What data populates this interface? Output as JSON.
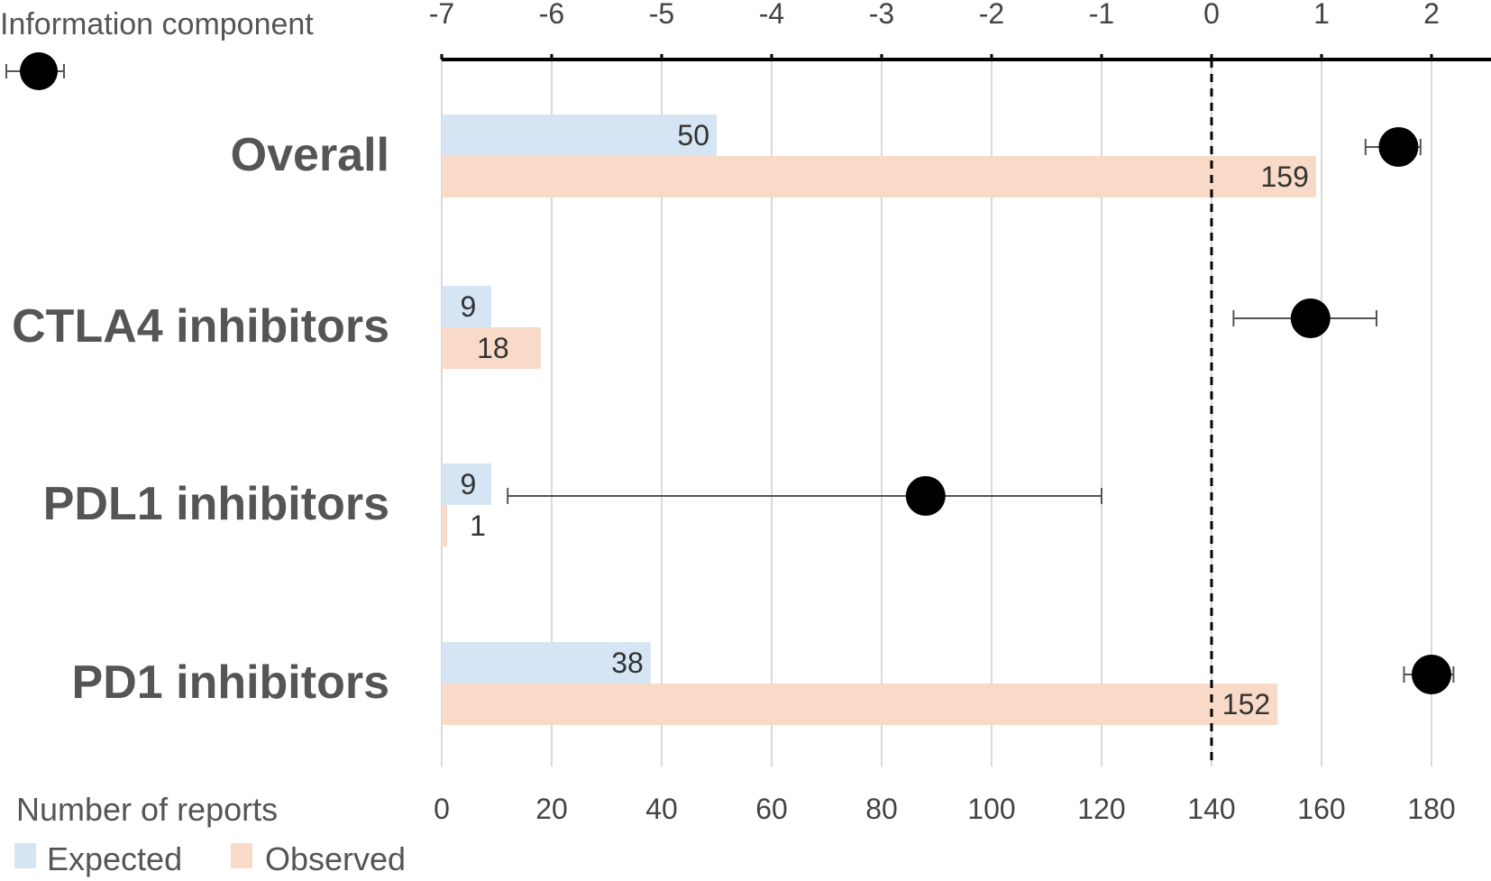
{
  "chart_data": {
    "type": "bar",
    "orientation": "horizontal",
    "categories": [
      "Overall",
      "CTLA4 inhibitors",
      "PDL1 inhibitors",
      "PD1 inhibitors"
    ],
    "bottom_axis": {
      "title": "Number of reports",
      "range": [
        0,
        190
      ],
      "ticks": [
        "0",
        "20",
        "40",
        "60",
        "80",
        "100",
        "120",
        "140",
        "160",
        "180"
      ],
      "tick_values": [
        0,
        20,
        40,
        60,
        80,
        100,
        120,
        140,
        160,
        180
      ]
    },
    "top_axis": {
      "title": "Information component",
      "range": [
        -7,
        2.5
      ],
      "ticks": [
        "-7",
        "-6",
        "-5",
        "-4",
        "-3",
        "-2",
        "-1",
        "0",
        "1",
        "2"
      ],
      "tick_values": [
        -7,
        -6,
        -5,
        -4,
        -3,
        -2,
        -1,
        0,
        1,
        2
      ]
    },
    "series": [
      {
        "name": "Expected",
        "color": "#d6e5f4",
        "values": [
          50,
          9,
          9,
          38
        ],
        "labels": [
          "50",
          "9",
          "9",
          "38"
        ]
      },
      {
        "name": "Observed",
        "color": "#f9d9c7",
        "values": [
          159,
          18,
          1,
          152
        ],
        "labels": [
          "159",
          "18",
          "1",
          "152"
        ]
      }
    ],
    "information_component": {
      "values": [
        1.7,
        0.9,
        -2.6,
        2.0
      ],
      "ci_lower": [
        1.4,
        0.2,
        -6.4,
        1.75
      ],
      "ci_upper": [
        1.9,
        1.5,
        -1.0,
        2.2
      ]
    },
    "reference_line": {
      "axis": "top",
      "value": 0,
      "style": "dashed"
    },
    "ic_legend_marker": "filled-circle-with-error-bar",
    "grid": true,
    "legend_position": "bottom-left"
  }
}
